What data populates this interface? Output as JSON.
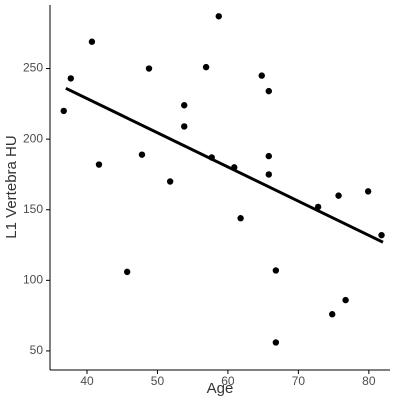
{
  "chart_data": {
    "type": "scatter",
    "x_label": "Age",
    "y_label": "L1 Vertebra HU",
    "x": [
      36.7,
      37.7,
      40.7,
      41.7,
      45.7,
      47.8,
      48.8,
      51.8,
      53.8,
      53.8,
      56.9,
      58.7,
      57.7,
      60.9,
      61.8,
      64.8,
      65.8,
      65.8,
      65.8,
      66.8,
      66.8,
      72.8,
      75.7,
      76.7,
      74.8,
      79.9,
      81.8
    ],
    "values": [
      220,
      243,
      269,
      182,
      106,
      189,
      250,
      170,
      224,
      209,
      251,
      287,
      187,
      180,
      144,
      245,
      234,
      188,
      175,
      107,
      56,
      152,
      160,
      86,
      76,
      163,
      132
    ],
    "color": "#000000",
    "trend_line": {
      "x": [
        37,
        82
      ],
      "y": [
        236,
        127
      ]
    },
    "xlim": [
      34.75,
      83
    ],
    "ylim": [
      36.5,
      295
    ],
    "xticks": [
      40,
      50,
      60,
      70,
      80
    ],
    "yticks": [
      50,
      100,
      150,
      200,
      250
    ],
    "grid": false
  }
}
